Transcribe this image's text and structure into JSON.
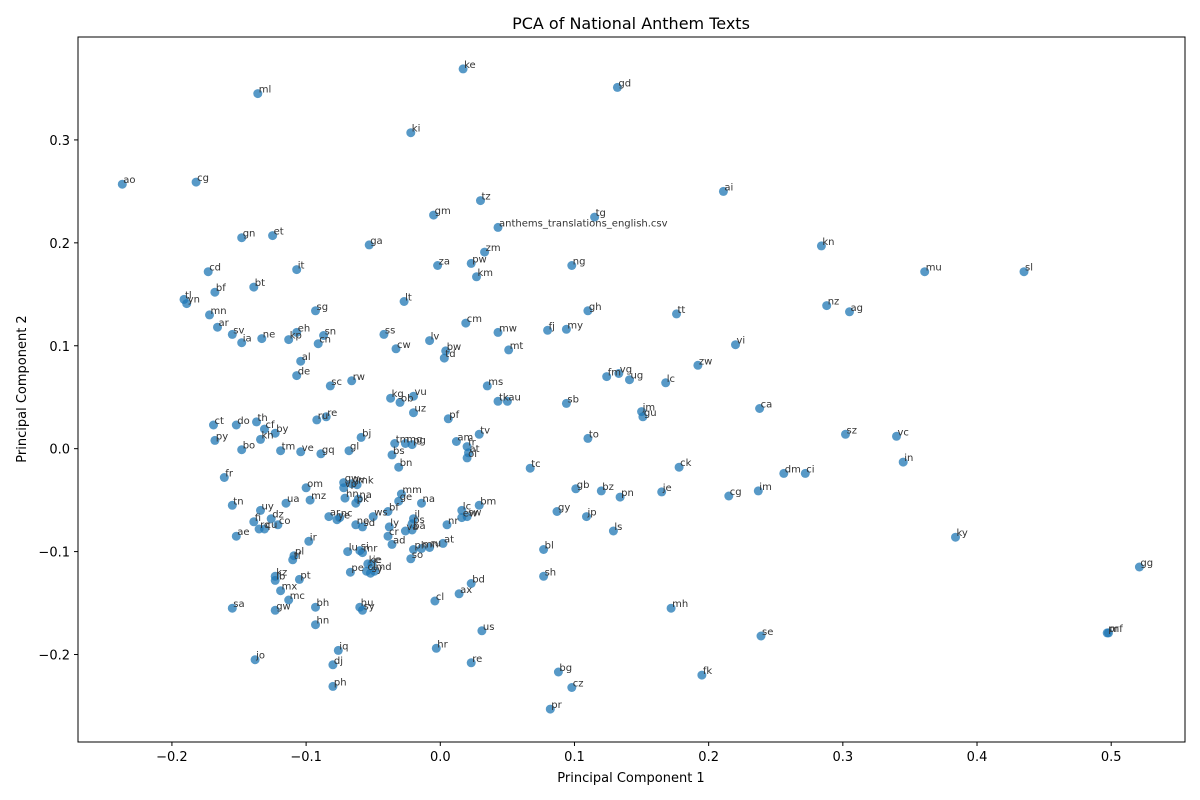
{
  "chart_data": {
    "type": "scatter",
    "title": "PCA of National Anthem Texts",
    "xlabel": "Principal Component 1",
    "ylabel": "Principal Component 2",
    "xlim": [
      -0.27,
      0.555
    ],
    "ylim": [
      -0.285,
      0.4
    ],
    "xticks": [
      -0.2,
      -0.1,
      0.0,
      0.1,
      0.2,
      0.3,
      0.4,
      0.5
    ],
    "xtick_labels": [
      "−0.2",
      "−0.1",
      "0.0",
      "0.1",
      "0.2",
      "0.3",
      "0.4",
      "0.5"
    ],
    "yticks": [
      -0.2,
      -0.1,
      0.0,
      0.1,
      0.2,
      0.3
    ],
    "yticks_labels": [
      "−0.2",
      "−0.1",
      "0.0",
      "0.1",
      "0.2",
      "0.3"
    ],
    "grid": false,
    "point_color": "#1f77b4",
    "points": [
      {
        "label": "ke",
        "x": 0.017,
        "y": 0.369
      },
      {
        "label": "ml",
        "x": -0.136,
        "y": 0.345
      },
      {
        "label": "gd",
        "x": 0.132,
        "y": 0.351
      },
      {
        "label": "ki",
        "x": -0.022,
        "y": 0.307
      },
      {
        "label": "ao",
        "x": -0.237,
        "y": 0.257
      },
      {
        "label": "cg",
        "x": -0.182,
        "y": 0.259
      },
      {
        "label": "ai",
        "x": 0.211,
        "y": 0.25
      },
      {
        "label": "tz",
        "x": 0.03,
        "y": 0.241
      },
      {
        "label": "gm",
        "x": -0.005,
        "y": 0.227
      },
      {
        "label": "tg",
        "x": 0.115,
        "y": 0.225
      },
      {
        "label": "anthems_translations_english.csv",
        "x": 0.043,
        "y": 0.215
      },
      {
        "label": "gn",
        "x": -0.148,
        "y": 0.205
      },
      {
        "label": "et",
        "x": -0.125,
        "y": 0.207
      },
      {
        "label": "ga",
        "x": -0.053,
        "y": 0.198
      },
      {
        "label": "kn",
        "x": 0.284,
        "y": 0.197
      },
      {
        "label": "zm",
        "x": 0.033,
        "y": 0.191
      },
      {
        "label": "pw",
        "x": 0.023,
        "y": 0.18
      },
      {
        "label": "za",
        "x": -0.002,
        "y": 0.178
      },
      {
        "label": "ng",
        "x": 0.098,
        "y": 0.178
      },
      {
        "label": "cd",
        "x": -0.173,
        "y": 0.172
      },
      {
        "label": "it",
        "x": -0.107,
        "y": 0.174
      },
      {
        "label": "km",
        "x": 0.027,
        "y": 0.167
      },
      {
        "label": "mu",
        "x": 0.361,
        "y": 0.172
      },
      {
        "label": "sl",
        "x": 0.435,
        "y": 0.172
      },
      {
        "label": "bt",
        "x": -0.139,
        "y": 0.157
      },
      {
        "label": "bf",
        "x": -0.168,
        "y": 0.152
      },
      {
        "label": "tl",
        "x": -0.191,
        "y": 0.145
      },
      {
        "label": "yn",
        "x": -0.189,
        "y": 0.141
      },
      {
        "label": "lt",
        "x": -0.027,
        "y": 0.143
      },
      {
        "label": "gh",
        "x": 0.11,
        "y": 0.134
      },
      {
        "label": "nz",
        "x": 0.288,
        "y": 0.139
      },
      {
        "label": "ag",
        "x": 0.305,
        "y": 0.133
      },
      {
        "label": "sg",
        "x": -0.093,
        "y": 0.134
      },
      {
        "label": "tt",
        "x": 0.176,
        "y": 0.131
      },
      {
        "label": "mn",
        "x": -0.172,
        "y": 0.13
      },
      {
        "label": "cm",
        "x": 0.019,
        "y": 0.122
      },
      {
        "label": "ar",
        "x": -0.166,
        "y": 0.118
      },
      {
        "label": "eh",
        "x": -0.107,
        "y": 0.113
      },
      {
        "label": "sv",
        "x": -0.155,
        "y": 0.111
      },
      {
        "label": "sn",
        "x": -0.087,
        "y": 0.11
      },
      {
        "label": "ss",
        "x": -0.042,
        "y": 0.111
      },
      {
        "label": "fj",
        "x": 0.08,
        "y": 0.115
      },
      {
        "label": "my",
        "x": 0.094,
        "y": 0.116
      },
      {
        "label": "mw",
        "x": 0.043,
        "y": 0.113
      },
      {
        "label": "ne",
        "x": -0.133,
        "y": 0.107
      },
      {
        "label": "kp",
        "x": -0.113,
        "y": 0.106
      },
      {
        "label": "cn",
        "x": -0.091,
        "y": 0.102
      },
      {
        "label": "lv",
        "x": -0.008,
        "y": 0.105
      },
      {
        "label": "ia",
        "x": -0.148,
        "y": 0.103
      },
      {
        "label": "vi",
        "x": 0.22,
        "y": 0.101
      },
      {
        "label": "cw",
        "x": -0.033,
        "y": 0.097
      },
      {
        "label": "bw",
        "x": 0.004,
        "y": 0.095
      },
      {
        "label": "mt",
        "x": 0.051,
        "y": 0.096
      },
      {
        "label": "td",
        "x": 0.003,
        "y": 0.088
      },
      {
        "label": "al",
        "x": -0.104,
        "y": 0.085
      },
      {
        "label": "zw",
        "x": 0.192,
        "y": 0.081
      },
      {
        "label": "de",
        "x": -0.107,
        "y": 0.071
      },
      {
        "label": "fm",
        "x": 0.124,
        "y": 0.07
      },
      {
        "label": "vg",
        "x": 0.133,
        "y": 0.073
      },
      {
        "label": "ug",
        "x": 0.141,
        "y": 0.067
      },
      {
        "label": "rw",
        "x": -0.066,
        "y": 0.066
      },
      {
        "label": "sc",
        "x": -0.082,
        "y": 0.061
      },
      {
        "label": "lc",
        "x": 0.168,
        "y": 0.064
      },
      {
        "label": "ms",
        "x": 0.035,
        "y": 0.061
      },
      {
        "label": "kg",
        "x": -0.037,
        "y": 0.049
      },
      {
        "label": "vu",
        "x": -0.02,
        "y": 0.051
      },
      {
        "label": "ob",
        "x": -0.03,
        "y": 0.045
      },
      {
        "label": "tk",
        "x": 0.043,
        "y": 0.046
      },
      {
        "label": "au",
        "x": 0.05,
        "y": 0.046
      },
      {
        "label": "sb",
        "x": 0.094,
        "y": 0.044
      },
      {
        "label": "ca",
        "x": 0.238,
        "y": 0.039
      },
      {
        "label": "jm",
        "x": 0.15,
        "y": 0.036
      },
      {
        "label": "gu",
        "x": 0.151,
        "y": 0.031
      },
      {
        "label": "uz",
        "x": -0.02,
        "y": 0.035
      },
      {
        "label": "re",
        "x": -0.085,
        "y": 0.031
      },
      {
        "label": "ru",
        "x": -0.092,
        "y": 0.028
      },
      {
        "label": "pf",
        "x": 0.006,
        "y": 0.029
      },
      {
        "label": "ct",
        "x": -0.169,
        "y": 0.023
      },
      {
        "label": "th",
        "x": -0.137,
        "y": 0.026
      },
      {
        "label": "cf",
        "x": -0.131,
        "y": 0.019
      },
      {
        "label": "do",
        "x": -0.152,
        "y": 0.023
      },
      {
        "label": "by",
        "x": -0.123,
        "y": 0.015
      },
      {
        "label": "sz",
        "x": 0.302,
        "y": 0.014
      },
      {
        "label": "tv",
        "x": 0.029,
        "y": 0.014
      },
      {
        "label": "vc",
        "x": 0.34,
        "y": 0.012
      },
      {
        "label": "kh",
        "x": -0.134,
        "y": 0.009
      },
      {
        "label": "bj",
        "x": -0.059,
        "y": 0.011
      },
      {
        "label": "to",
        "x": 0.11,
        "y": 0.01
      },
      {
        "label": "py",
        "x": -0.168,
        "y": 0.008
      },
      {
        "label": "am",
        "x": 0.012,
        "y": 0.007
      },
      {
        "label": "tm",
        "x": -0.034,
        "y": 0.005
      },
      {
        "label": "mg",
        "x": -0.026,
        "y": 0.005
      },
      {
        "label": "pg",
        "x": -0.021,
        "y": 0.004
      },
      {
        "label": "fr",
        "x": 0.02,
        "y": 0.002
      },
      {
        "label": "tm",
        "x": -0.119,
        "y": -0.002
      },
      {
        "label": "bo",
        "x": -0.148,
        "y": -0.001
      },
      {
        "label": "ve",
        "x": -0.104,
        "y": -0.003
      },
      {
        "label": "gl",
        "x": -0.068,
        "y": -0.002
      },
      {
        "label": "gq",
        "x": -0.089,
        "y": -0.005
      },
      {
        "label": "bs",
        "x": -0.036,
        "y": -0.006
      },
      {
        "label": "at",
        "x": 0.021,
        "y": -0.004
      },
      {
        "label": "ol",
        "x": 0.02,
        "y": -0.009
      },
      {
        "label": "bn",
        "x": -0.031,
        "y": -0.018
      },
      {
        "label": "tc",
        "x": 0.067,
        "y": -0.019
      },
      {
        "label": "ck",
        "x": 0.178,
        "y": -0.018
      },
      {
        "label": "dm",
        "x": 0.256,
        "y": -0.024
      },
      {
        "label": "ci",
        "x": 0.272,
        "y": -0.024
      },
      {
        "label": "in",
        "x": 0.345,
        "y": -0.013
      },
      {
        "label": "fr",
        "x": -0.161,
        "y": -0.028
      },
      {
        "label": "om",
        "x": -0.1,
        "y": -0.038
      },
      {
        "label": "gw",
        "x": -0.072,
        "y": -0.033
      },
      {
        "label": "gv",
        "x": -0.066,
        "y": -0.034
      },
      {
        "label": "mk",
        "x": -0.062,
        "y": -0.035
      },
      {
        "label": "vp",
        "x": -0.072,
        "y": -0.038
      },
      {
        "label": "gb",
        "x": 0.101,
        "y": -0.039
      },
      {
        "label": "bz",
        "x": 0.12,
        "y": -0.041
      },
      {
        "label": "je",
        "x": 0.165,
        "y": -0.042
      },
      {
        "label": "im",
        "x": 0.237,
        "y": -0.041
      },
      {
        "label": "mm",
        "x": -0.029,
        "y": -0.044
      },
      {
        "label": "cg",
        "x": 0.215,
        "y": -0.046
      },
      {
        "label": "pn",
        "x": 0.134,
        "y": -0.047
      },
      {
        "label": "mz",
        "x": -0.097,
        "y": -0.05
      },
      {
        "label": "ua",
        "x": -0.115,
        "y": -0.053
      },
      {
        "label": "hn",
        "x": -0.071,
        "y": -0.048
      },
      {
        "label": "na",
        "x": -0.061,
        "y": -0.049
      },
      {
        "label": "pk",
        "x": -0.063,
        "y": -0.053
      },
      {
        "label": "ge",
        "x": -0.031,
        "y": -0.051
      },
      {
        "label": "na",
        "x": -0.014,
        "y": -0.053
      },
      {
        "label": "tn",
        "x": -0.155,
        "y": -0.055
      },
      {
        "label": "bm",
        "x": 0.029,
        "y": -0.055
      },
      {
        "label": "lc",
        "x": 0.016,
        "y": -0.06
      },
      {
        "label": "uy",
        "x": -0.134,
        "y": -0.06
      },
      {
        "label": "gy",
        "x": 0.087,
        "y": -0.061
      },
      {
        "label": "bf",
        "x": -0.039,
        "y": -0.061
      },
      {
        "label": "ws",
        "x": -0.05,
        "y": -0.066
      },
      {
        "label": "ar",
        "x": -0.083,
        "y": -0.066
      },
      {
        "label": "nc",
        "x": -0.075,
        "y": -0.067
      },
      {
        "label": "ye",
        "x": -0.077,
        "y": -0.069
      },
      {
        "label": "ew",
        "x": 0.016,
        "y": -0.067
      },
      {
        "label": "sw",
        "x": 0.02,
        "y": -0.066
      },
      {
        "label": "jp",
        "x": 0.109,
        "y": -0.066
      },
      {
        "label": "dz",
        "x": -0.126,
        "y": -0.068
      },
      {
        "label": "fi",
        "x": -0.139,
        "y": -0.071
      },
      {
        "label": "il",
        "x": -0.02,
        "y": -0.068
      },
      {
        "label": "nr",
        "x": 0.005,
        "y": -0.074
      },
      {
        "label": "co",
        "x": -0.121,
        "y": -0.074
      },
      {
        "label": "no",
        "x": -0.063,
        "y": -0.074
      },
      {
        "label": "sd",
        "x": -0.058,
        "y": -0.076
      },
      {
        "label": "ly",
        "x": -0.038,
        "y": -0.076
      },
      {
        "label": "ps",
        "x": -0.021,
        "y": -0.073
      },
      {
        "label": "rq",
        "x": -0.135,
        "y": -0.078
      },
      {
        "label": "cu",
        "x": -0.131,
        "y": -0.078
      },
      {
        "label": "ls",
        "x": 0.129,
        "y": -0.08
      },
      {
        "label": "va",
        "x": -0.026,
        "y": -0.08
      },
      {
        "label": "ba",
        "x": -0.021,
        "y": -0.079
      },
      {
        "label": "ae",
        "x": -0.152,
        "y": -0.085
      },
      {
        "label": "cr",
        "x": -0.039,
        "y": -0.085
      },
      {
        "label": "ir",
        "x": -0.098,
        "y": -0.09
      },
      {
        "label": "at",
        "x": 0.002,
        "y": -0.092
      },
      {
        "label": "ad",
        "x": -0.036,
        "y": -0.093
      },
      {
        "label": "mn",
        "x": -0.014,
        "y": -0.097
      },
      {
        "label": "ru",
        "x": -0.008,
        "y": -0.096
      },
      {
        "label": "ph",
        "x": -0.02,
        "y": -0.098
      },
      {
        "label": "bl",
        "x": 0.077,
        "y": -0.098
      },
      {
        "label": "ky",
        "x": 0.384,
        "y": -0.086
      },
      {
        "label": "lu",
        "x": -0.069,
        "y": -0.1
      },
      {
        "label": "pl",
        "x": -0.109,
        "y": -0.104
      },
      {
        "label": "si",
        "x": -0.06,
        "y": -0.099
      },
      {
        "label": "mr",
        "x": -0.058,
        "y": -0.101
      },
      {
        "label": "so",
        "x": -0.022,
        "y": -0.107
      },
      {
        "label": "tf",
        "x": -0.11,
        "y": -0.108
      },
      {
        "label": "ke",
        "x": -0.054,
        "y": -0.112
      },
      {
        "label": "ie",
        "x": -0.051,
        "y": -0.112
      },
      {
        "label": "cl",
        "x": -0.055,
        "y": -0.119
      },
      {
        "label": "md",
        "x": -0.049,
        "y": -0.119
      },
      {
        "label": "pe",
        "x": -0.067,
        "y": -0.12
      },
      {
        "label": "sy",
        "x": -0.052,
        "y": -0.121
      },
      {
        "label": "kz",
        "x": -0.123,
        "y": -0.124
      },
      {
        "label": "lb",
        "x": -0.123,
        "y": -0.128
      },
      {
        "label": "pt",
        "x": -0.105,
        "y": -0.127
      },
      {
        "label": "sh",
        "x": 0.077,
        "y": -0.124
      },
      {
        "label": "bd",
        "x": 0.023,
        "y": -0.131
      },
      {
        "label": "mx",
        "x": -0.119,
        "y": -0.138
      },
      {
        "label": "ax",
        "x": 0.014,
        "y": -0.141
      },
      {
        "label": "mc",
        "x": -0.113,
        "y": -0.147
      },
      {
        "label": "cl",
        "x": -0.004,
        "y": -0.148
      },
      {
        "label": "sa",
        "x": -0.155,
        "y": -0.155
      },
      {
        "label": "gw",
        "x": -0.123,
        "y": -0.157
      },
      {
        "label": "bh",
        "x": -0.093,
        "y": -0.154
      },
      {
        "label": "hu",
        "x": -0.06,
        "y": -0.154
      },
      {
        "label": "sy",
        "x": -0.058,
        "y": -0.157
      },
      {
        "label": "mh",
        "x": 0.172,
        "y": -0.155
      },
      {
        "label": "gg",
        "x": 0.521,
        "y": -0.115
      },
      {
        "label": "hn",
        "x": -0.093,
        "y": -0.171
      },
      {
        "label": "us",
        "x": 0.031,
        "y": -0.177
      },
      {
        "label": "se",
        "x": 0.239,
        "y": -0.182
      },
      {
        "label": "pr",
        "x": 0.497,
        "y": -0.179
      },
      {
        "label": "mf",
        "x": 0.498,
        "y": -0.179
      },
      {
        "label": "iq",
        "x": -0.076,
        "y": -0.196
      },
      {
        "label": "hr",
        "x": -0.003,
        "y": -0.194
      },
      {
        "label": "jo",
        "x": -0.138,
        "y": -0.205
      },
      {
        "label": "dj",
        "x": -0.08,
        "y": -0.21
      },
      {
        "label": "re",
        "x": 0.023,
        "y": -0.208
      },
      {
        "label": "bg",
        "x": 0.088,
        "y": -0.217
      },
      {
        "label": "fk",
        "x": 0.195,
        "y": -0.22
      },
      {
        "label": "ph",
        "x": -0.08,
        "y": -0.231
      },
      {
        "label": "cz",
        "x": 0.098,
        "y": -0.232
      },
      {
        "label": "pr",
        "x": 0.082,
        "y": -0.253
      }
    ]
  }
}
